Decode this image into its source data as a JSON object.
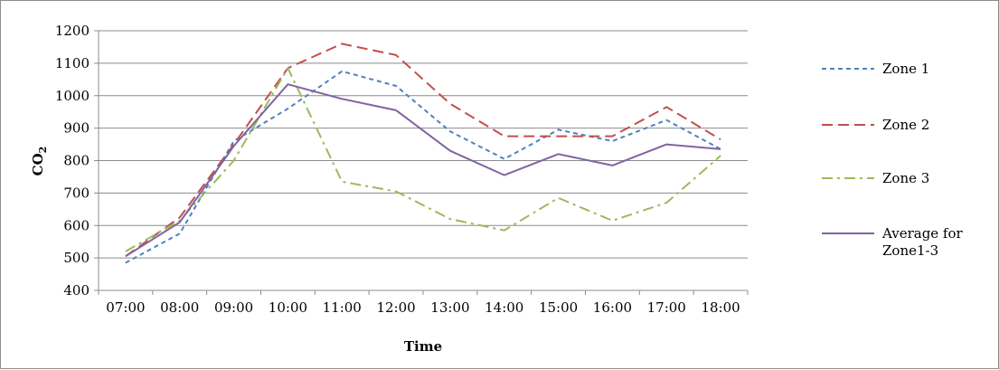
{
  "chart_data": {
    "type": "line",
    "title": "",
    "xlabel": "Time",
    "ylabel": "CO",
    "ylabel_sub": "2",
    "categories": [
      "07:00",
      "08:00",
      "09:00",
      "10:00",
      "11:00",
      "12:00",
      "13:00",
      "14:00",
      "15:00",
      "16:00",
      "17:00",
      "18:00"
    ],
    "ylim": [
      400,
      1200
    ],
    "yticks": [
      400,
      500,
      600,
      700,
      800,
      900,
      1000,
      1100,
      1200
    ],
    "grid": true,
    "legend_position": "right",
    "series": [
      {
        "name": "Zone 1",
        "color": "#4f81bd",
        "dash": "short-dash",
        "values": [
          485,
          575,
          860,
          960,
          1075,
          1030,
          890,
          805,
          895,
          860,
          925,
          835
        ]
      },
      {
        "name": "Zone 2",
        "color": "#c0504d",
        "dash": "long-dash",
        "values": [
          505,
          625,
          850,
          1085,
          1160,
          1125,
          975,
          875,
          875,
          875,
          965,
          865
        ]
      },
      {
        "name": "Zone 3",
        "color": "#9bbb59",
        "dash": "dash-dot",
        "values": [
          520,
          615,
          800,
          1085,
          735,
          705,
          620,
          585,
          685,
          615,
          670,
          815
        ]
      },
      {
        "name": "Average for Zone1-3",
        "name_lines": [
          "Average for",
          "Zone1-3"
        ],
        "color": "#8064a2",
        "dash": "solid",
        "values": [
          505,
          610,
          845,
          1035,
          990,
          955,
          830,
          755,
          820,
          785,
          850,
          835
        ]
      }
    ]
  }
}
